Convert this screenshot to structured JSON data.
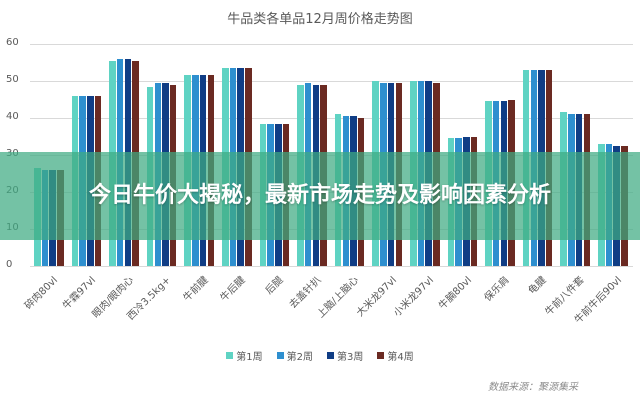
{
  "chart_data": {
    "type": "bar",
    "title": "牛品类各单品12月周价格走势图",
    "xlabel": "",
    "ylabel": "",
    "ylim": [
      0,
      60
    ],
    "yticks": [
      0,
      10,
      20,
      30,
      40,
      50,
      60
    ],
    "grid": true,
    "legend_position": "bottom",
    "categories": [
      "碎肉80vl",
      "牛霖97vl",
      "眼肉/眼肉心",
      "西冷3.5kg+",
      "牛前腱",
      "牛后腱",
      "后腿",
      "去盖针扒",
      "上脑/上脑心",
      "大米龙97vl",
      "小米龙97vl",
      "牛腩80vl",
      "保乐肩",
      "龟腱",
      "牛前八件套",
      "牛前牛后90vl"
    ],
    "series": [
      {
        "name": "第1周",
        "color": "#5fd3c3",
        "values": [
          26.5,
          46,
          55.5,
          48.5,
          51.5,
          53.5,
          38.5,
          49,
          41,
          50,
          50,
          34.5,
          44.5,
          53,
          41.5,
          33
        ]
      },
      {
        "name": "第2周",
        "color": "#2e8fcf",
        "values": [
          26,
          46,
          56,
          49.5,
          51.5,
          53.5,
          38.5,
          49.5,
          40.5,
          49.5,
          50,
          34.5,
          44.5,
          53,
          41,
          33
        ]
      },
      {
        "name": "第3周",
        "color": "#103d85",
        "values": [
          26,
          46,
          56,
          49.5,
          51.5,
          53.5,
          38.5,
          49,
          40.5,
          49.5,
          50,
          35,
          44.5,
          53,
          41,
          32.5
        ]
      },
      {
        "name": "第4周",
        "color": "#6b2a22",
        "values": [
          26,
          46,
          55.5,
          49,
          51.5,
          53.5,
          38.5,
          49,
          40,
          49.5,
          49.5,
          35,
          45,
          53,
          41,
          32.5
        ]
      }
    ],
    "source": "数据来源：聚源集采"
  },
  "overlay": {
    "headline": "今日牛价大揭秘，最新市场走势及影响因素分析"
  }
}
